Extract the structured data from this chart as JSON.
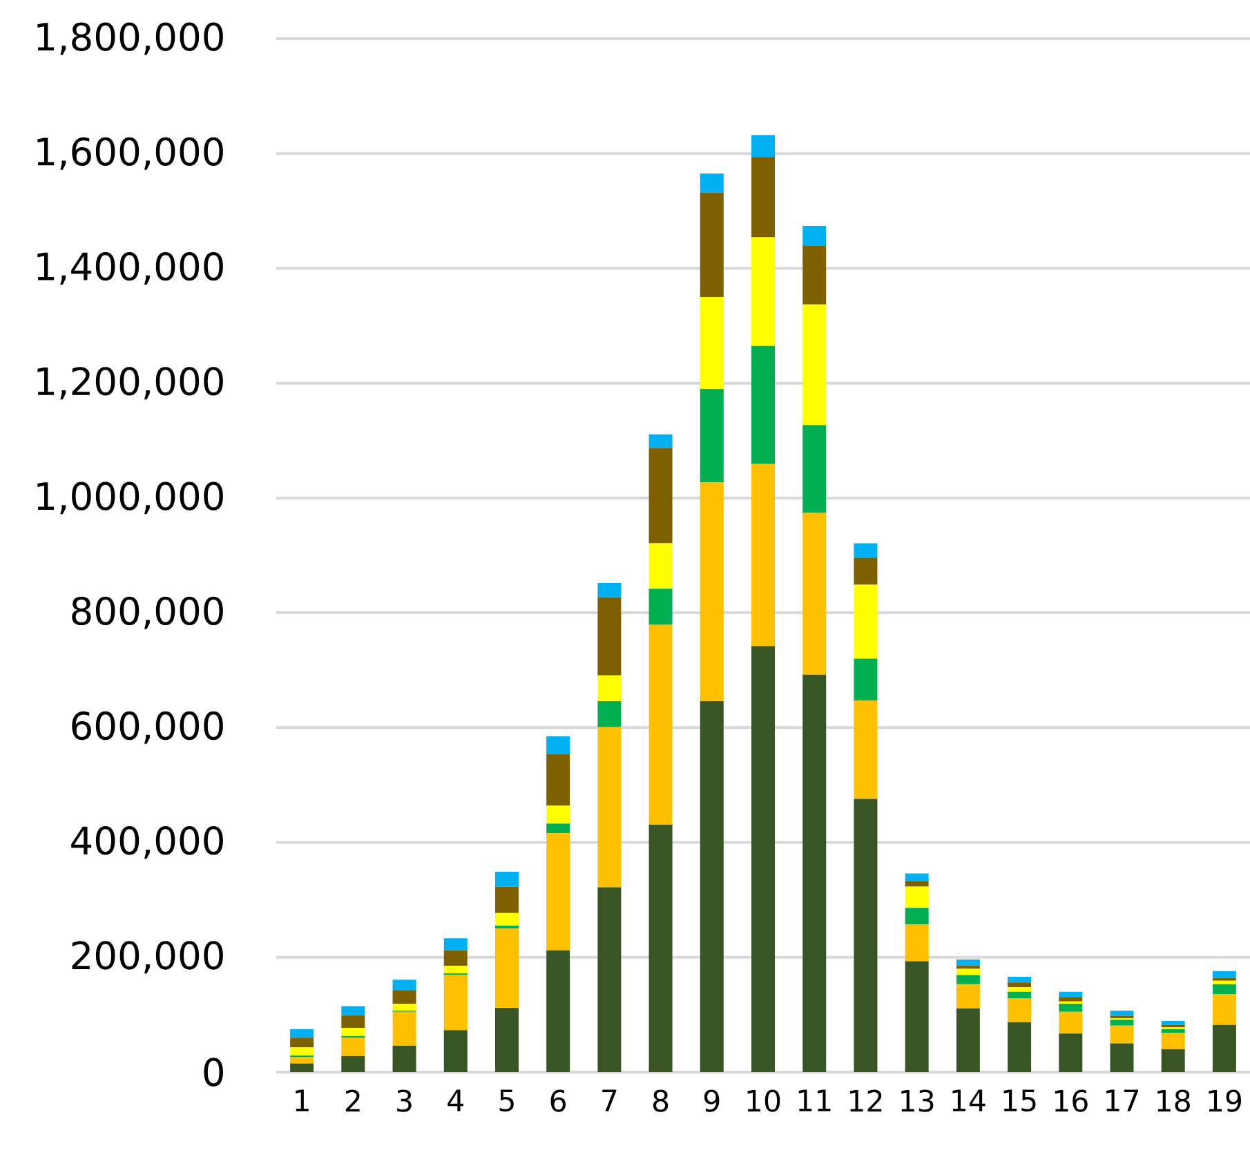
{
  "chart_data": {
    "type": "bar",
    "stacked": true,
    "grid": "y",
    "categories": [
      "1",
      "2",
      "3",
      "4",
      "5",
      "6",
      "7",
      "8",
      "9",
      "10",
      "11",
      "12",
      "13",
      "14",
      "15",
      "16",
      "17",
      "18",
      "19"
    ],
    "ylim": [
      0,
      1800000
    ],
    "yticks": [
      {
        "value": 0,
        "label": "0"
      },
      {
        "value": 200000,
        "label": "200,000"
      },
      {
        "value": 400000,
        "label": "400,000"
      },
      {
        "value": 600000,
        "label": "600,000"
      },
      {
        "value": 800000,
        "label": "800,000"
      },
      {
        "value": 1000000,
        "label": "1,000,000"
      },
      {
        "value": 1200000,
        "label": "1,200,000"
      },
      {
        "value": 1400000,
        "label": "1,400,000"
      },
      {
        "value": 1600000,
        "label": "1,600,000"
      },
      {
        "value": 1800000,
        "label": "1,800,000"
      }
    ],
    "series": [
      {
        "color": "#375623",
        "values": [
          15000,
          28000,
          46000,
          73000,
          112000,
          212000,
          322000,
          431000,
          646000,
          742000,
          692000,
          476000,
          193000,
          111000,
          87000,
          67000,
          50000,
          40000,
          82000
        ]
      },
      {
        "color": "#ffc000",
        "values": [
          11000,
          32000,
          59000,
          96000,
          138000,
          204000,
          279000,
          348000,
          381000,
          317000,
          282000,
          171000,
          64000,
          42000,
          41000,
          38000,
          31000,
          28000,
          54000
        ]
      },
      {
        "color": "#00b050",
        "values": [
          3000,
          3000,
          2000,
          3000,
          5000,
          17000,
          45000,
          63000,
          163000,
          206000,
          153000,
          73000,
          29000,
          16000,
          12000,
          14000,
          10000,
          7000,
          17000
        ]
      },
      {
        "color": "#ffff00",
        "values": [
          14000,
          14000,
          12000,
          13000,
          22000,
          31000,
          45000,
          79000,
          160000,
          189000,
          210000,
          129000,
          37000,
          11000,
          8000,
          4000,
          3000,
          3000,
          6000
        ]
      },
      {
        "color": "#7f6000",
        "values": [
          17000,
          22000,
          24000,
          27000,
          46000,
          90000,
          136000,
          166000,
          182000,
          140000,
          102000,
          47000,
          10000,
          6000,
          8000,
          8000,
          4000,
          4000,
          5000
        ]
      },
      {
        "color": "#00b0f0",
        "values": [
          15000,
          16000,
          18000,
          21000,
          26000,
          31000,
          25000,
          24000,
          33000,
          38000,
          35000,
          25000,
          13000,
          10000,
          10000,
          9000,
          9000,
          7000,
          12000
        ]
      }
    ]
  }
}
